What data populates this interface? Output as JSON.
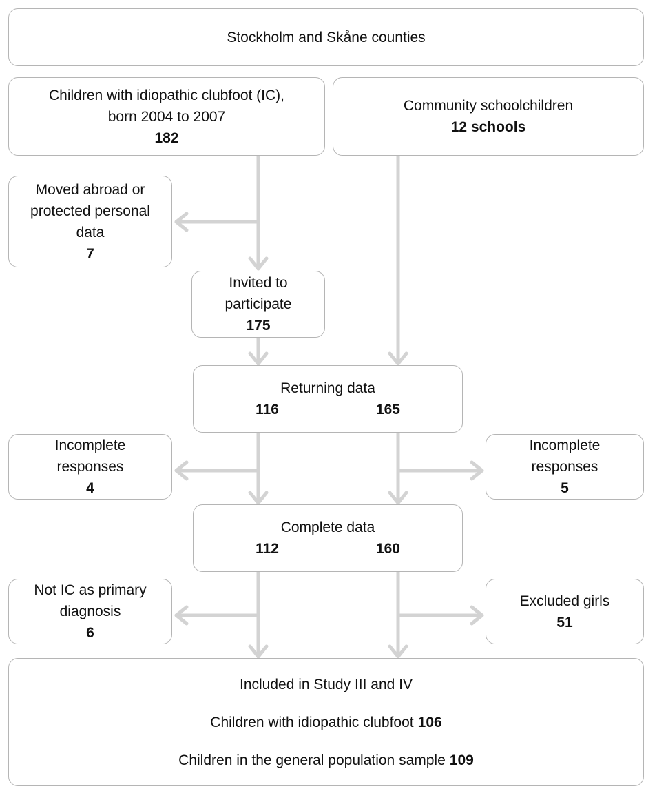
{
  "nodes": [
    {
      "lines": [
        "Stockholm and Skåne counties"
      ]
    },
    {
      "lines": [
        "Children with idiopathic clubfoot (IC),",
        "born 2004 to 2007"
      ],
      "count": 182
    },
    {
      "lines": [
        "Community schoolchildren"
      ],
      "count_label": "12 schools"
    },
    {
      "lines": [
        "Moved abroad or",
        "protected personal",
        "data"
      ],
      "count": 7
    },
    {
      "lines": [
        "Invited to",
        "participate"
      ],
      "count": 175
    },
    {
      "lines": [
        "Returning data"
      ],
      "counts": [
        116,
        165
      ]
    },
    {
      "lines": [
        "Incomplete",
        "responses"
      ],
      "count": 4
    },
    {
      "lines": [
        "Incomplete",
        "responses"
      ],
      "count": 5
    },
    {
      "lines": [
        "Complete data"
      ],
      "counts": [
        112,
        160
      ]
    },
    {
      "lines": [
        "Not IC as primary",
        "diagnosis"
      ],
      "count": 6
    },
    {
      "lines": [
        "Excluded girls"
      ],
      "count": 51
    },
    {
      "lines": [
        "Included in Study III and IV"
      ],
      "rows": [
        {
          "label": "Children with idiopathic clubfoot",
          "count": 106
        },
        {
          "label": "Children in the general population sample",
          "count": 109
        }
      ]
    }
  ]
}
